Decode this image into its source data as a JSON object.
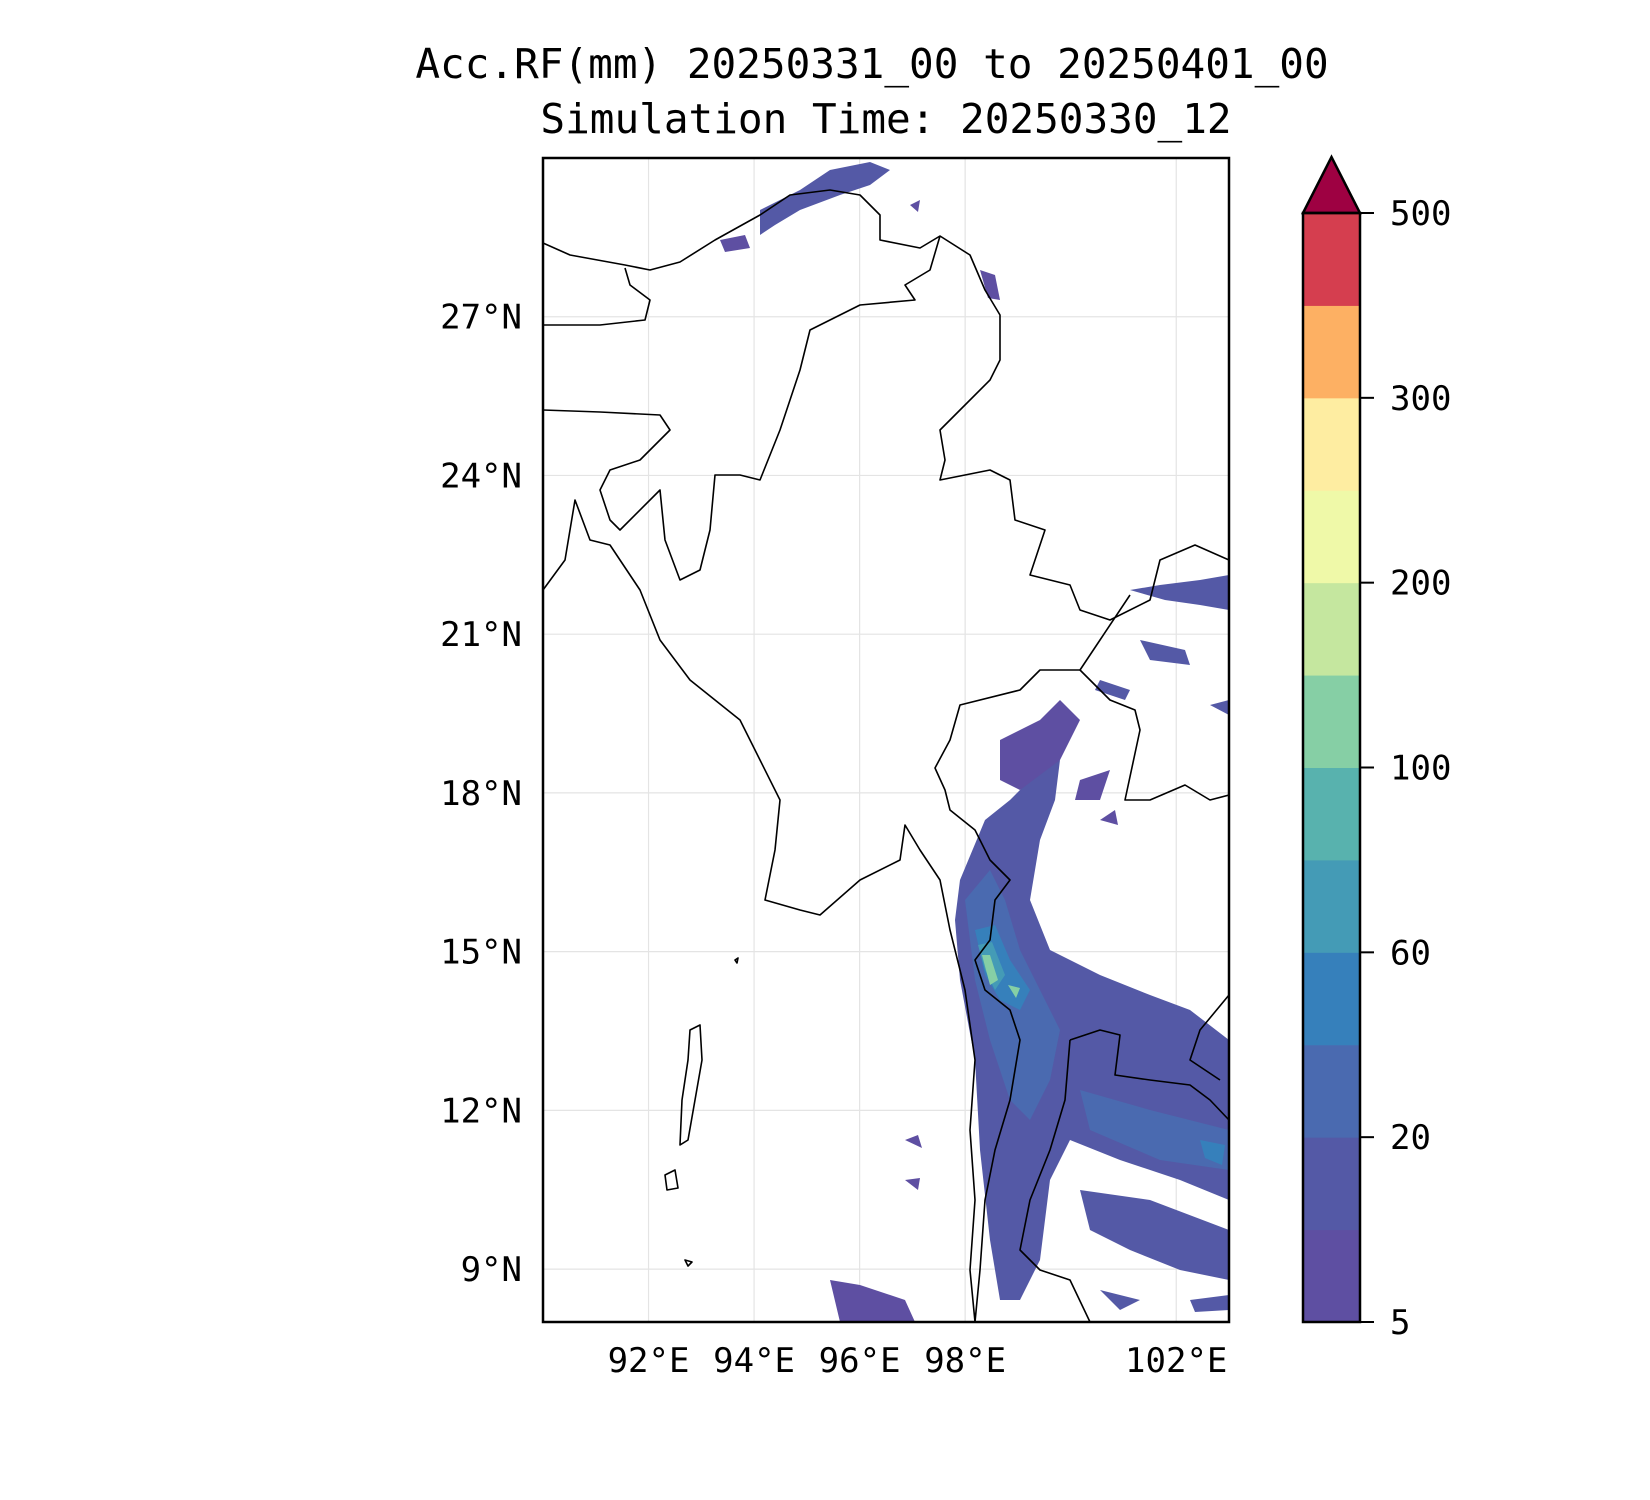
{
  "chart_data": {
    "type": "heatmap",
    "subtype": "filled-contour-map",
    "title": "Acc.RF(mm) 20250331_00 to 20250401_00",
    "subtitle": "Simulation Time: 20250330_12",
    "lon_range": [
      90,
      103
    ],
    "lat_range": [
      8,
      30
    ],
    "lat_ticks": [
      {
        "value": 27,
        "label": "27°N"
      },
      {
        "value": 24,
        "label": "24°N"
      },
      {
        "value": 21,
        "label": "21°N"
      },
      {
        "value": 18,
        "label": "18°N"
      },
      {
        "value": 15,
        "label": "15°N"
      },
      {
        "value": 12,
        "label": "12°N"
      },
      {
        "value": 9,
        "label": "9°N"
      }
    ],
    "lon_ticks": [
      {
        "value": 92,
        "label": "92°E"
      },
      {
        "value": 94,
        "label": "94°E"
      },
      {
        "value": 96,
        "label": "96°E"
      },
      {
        "value": 98,
        "label": "98°E"
      },
      {
        "value": 102,
        "label": "102°E"
      }
    ],
    "grid": true,
    "colorbar": {
      "levels": [
        5,
        10,
        20,
        40,
        60,
        80,
        100,
        150,
        200,
        250,
        300,
        400,
        500
      ],
      "colors": [
        "#5e4fa2",
        "#5459a6",
        "#4a6ab0",
        "#3680bb",
        "#449bb6",
        "#58b2ae",
        "#86cfa5",
        "#c5e79f",
        "#eff9a8",
        "#feeda1",
        "#fdb063",
        "#d53e4f"
      ],
      "extend_color": "#9e0142",
      "extend": "max",
      "tick_labels": [
        {
          "index": 0,
          "label": "5"
        },
        {
          "index": 2,
          "label": "20"
        },
        {
          "index": 4,
          "label": "60"
        },
        {
          "index": 6,
          "label": "100"
        },
        {
          "index": 8,
          "label": "200"
        },
        {
          "index": 10,
          "label": "300"
        },
        {
          "index": 12,
          "label": "500"
        }
      ],
      "placement": "right"
    }
  }
}
